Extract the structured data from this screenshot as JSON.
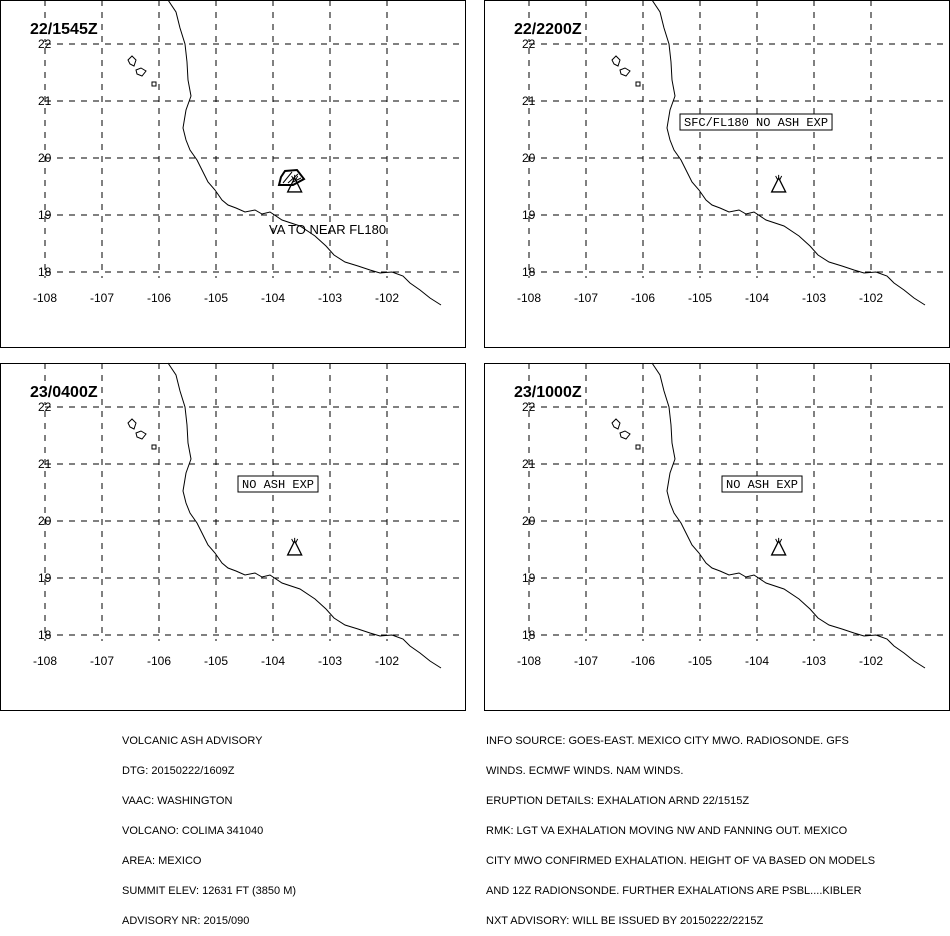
{
  "panels": [
    {
      "time": "22/1545Z",
      "annotation_text": "VA TO NEAR FL180",
      "annotation_boxed": false,
      "ash_polygon": true
    },
    {
      "time": "22/2200Z",
      "annotation_text": "SFC/FL180 NO ASH EXP",
      "annotation_boxed": true,
      "ash_polygon": false
    },
    {
      "time": "23/0400Z",
      "annotation_text": "NO ASH EXP",
      "annotation_boxed": true,
      "ash_polygon": false
    },
    {
      "time": "23/1000Z",
      "annotation_text": "NO ASH EXP",
      "annotation_boxed": true,
      "ash_polygon": false
    }
  ],
  "axes": {
    "lon_labels": [
      "-108",
      "-107",
      "-106",
      "-105",
      "-104",
      "-103",
      "-102"
    ],
    "lat_labels": [
      "22",
      "21",
      "20",
      "19",
      "18"
    ]
  },
  "volcano": {
    "name": "COLIMA",
    "lat": 19.51,
    "lon": -103.62
  },
  "advisory_left": [
    "VOLCANIC ASH ADVISORY",
    "DTG: 20150222/1609Z",
    "VAAC: WASHINGTON",
    "VOLCANO: COLIMA 341040",
    "AREA: MEXICO",
    "SUMMIT ELEV: 12631 FT (3850 M)",
    "ADVISORY NR: 2015/090"
  ],
  "advisory_right": [
    "INFO SOURCE: GOES-EAST. MEXICO CITY MWO. RADIOSONDE. GFS",
    "WINDS. ECMWF WINDS. NAM WINDS.",
    "ERUPTION DETAILS: EXHALATION ARND 22/1515Z",
    "RMK: LGT VA EXHALATION MOVING NW AND FANNING OUT. MEXICO",
    "CITY MWO CONFIRMED EXHALATION. HEIGHT OF VA BASED ON MODELS",
    "AND 12Z RADIONSONDE. FURTHER EXHALATIONS ARE PSBL....KIBLER",
    "NXT ADVISORY: WILL BE ISSUED BY 20150222/2215Z"
  ]
}
